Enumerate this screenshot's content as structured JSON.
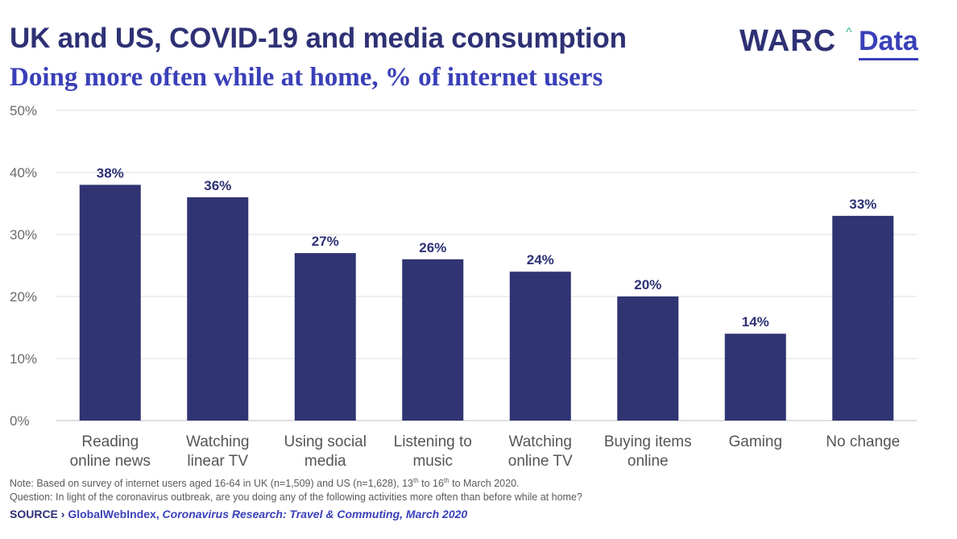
{
  "header": {
    "title": "UK and US, COVID-19 and media consumption",
    "subtitle": "Doing more often while at home, % of internet users"
  },
  "logo": {
    "brand": "WARC",
    "caret": "^",
    "product": "Data"
  },
  "colors": {
    "bar": "#303473",
    "title": "#2e3174",
    "subtitle": "#3a40b8",
    "accent": "#35b67a",
    "grid": "#dcdcdc"
  },
  "chart_data": {
    "type": "bar",
    "title": "UK and US, COVID-19 and media consumption",
    "subtitle": "Doing more often while at home, % of internet users",
    "categories": [
      [
        "Reading",
        "online news"
      ],
      [
        "Watching",
        "linear TV"
      ],
      [
        "Using social",
        "media"
      ],
      [
        "Listening to",
        "music"
      ],
      [
        "Watching",
        "online TV"
      ],
      [
        "Buying items",
        "online"
      ],
      [
        "Gaming"
      ],
      [
        "No change"
      ]
    ],
    "values": [
      38,
      36,
      27,
      26,
      24,
      20,
      14,
      33
    ],
    "value_labels": [
      "38%",
      "36%",
      "27%",
      "26%",
      "24%",
      "20%",
      "14%",
      "33%"
    ],
    "ylim": [
      0,
      50
    ],
    "yticks": [
      0,
      10,
      20,
      30,
      40,
      50
    ],
    "ytick_labels": [
      "0%",
      "10%",
      "20%",
      "30%",
      "40%",
      "50%"
    ],
    "xlabel": "",
    "ylabel": "",
    "grid": true,
    "legend": "none"
  },
  "footer": {
    "note_line1_pre": "Note: Based on survey of internet users aged 16-64 in UK (n=1,509) and US (n=1,628), 13",
    "note_sup1": "th",
    "note_line1_mid": " to 16",
    "note_sup2": "th",
    "note_line1_post": " to March 2020.",
    "note_line2": "Question: In light of the coronavirus outbreak, are you doing any of the following activities more often than before while at home?",
    "source_label": "SOURCE ›",
    "source_publisher": "GlobalWebIndex,",
    "source_report": "Coronavirus Research: Travel & Commuting, March 2020"
  }
}
